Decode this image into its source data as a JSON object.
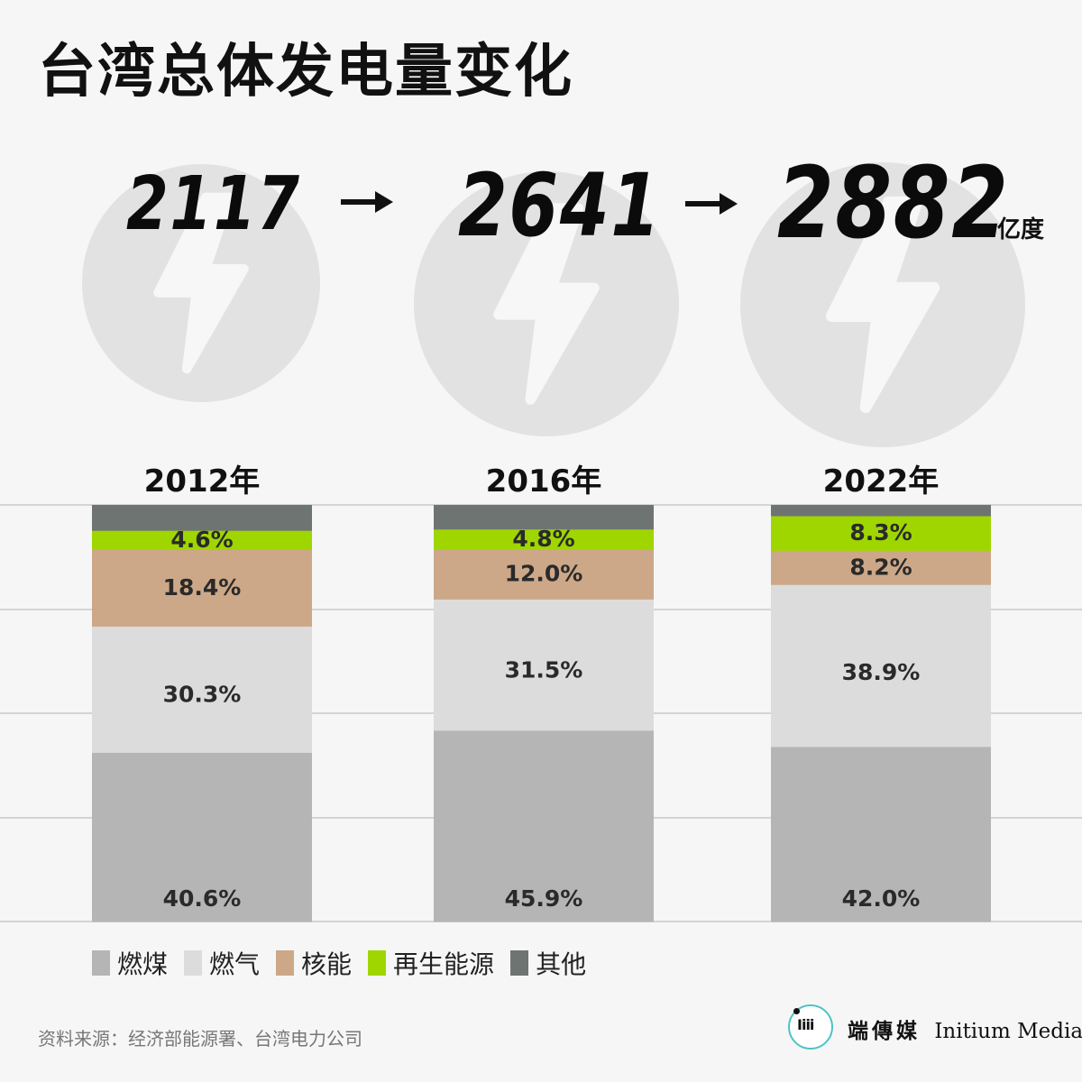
{
  "title": "台湾总体发电量变化",
  "totals": [
    {
      "value": "2117"
    },
    {
      "value": "2641"
    },
    {
      "value": "2882"
    }
  ],
  "unit": "亿度",
  "icons": {
    "bolt": "lightning-bolt-icon",
    "arrow": "right-arrow-icon"
  },
  "colors": {
    "coal": "#b5b5b5",
    "gas": "#dcdcdc",
    "nuclear": "#cda888",
    "renewable": "#9fd600",
    "other": "#6e7472",
    "circle": "#e2e2e2",
    "bolt": "#f7f7f7"
  },
  "chart_data": {
    "type": "bar",
    "stacked": true,
    "normalized": true,
    "categories": [
      "2012年",
      "2016年",
      "2022年"
    ],
    "ylim": [
      0,
      100
    ],
    "grid": true,
    "legend_position": "bottom-left",
    "series": [
      {
        "name": "燃煤",
        "values": [
          40.6,
          45.9,
          42.0
        ],
        "labels": [
          "40.6%",
          "45.9%",
          "42.0%"
        ],
        "color": "#b5b5b5"
      },
      {
        "name": "燃气",
        "values": [
          30.3,
          31.5,
          38.9
        ],
        "labels": [
          "30.3%",
          "31.5%",
          "38.9%"
        ],
        "color": "#dcdcdc"
      },
      {
        "name": "核能",
        "values": [
          18.4,
          12.0,
          8.2
        ],
        "labels": [
          "18.4%",
          "12.0%",
          "8.2%"
        ],
        "color": "#cda888"
      },
      {
        "name": "再生能源",
        "values": [
          4.6,
          4.8,
          8.3
        ],
        "labels": [
          "4.6%",
          "4.8%",
          "8.3%"
        ],
        "color": "#9fd600"
      },
      {
        "name": "其他",
        "values": [
          6.1,
          5.8,
          2.6
        ],
        "labels": [
          "",
          "",
          ""
        ],
        "color": "#6e7472"
      }
    ]
  },
  "legend": [
    {
      "label": "燃煤",
      "color": "#b5b5b5"
    },
    {
      "label": "燃气",
      "color": "#dcdcdc"
    },
    {
      "label": "核能",
      "color": "#cda888"
    },
    {
      "label": "再生能源",
      "color": "#9fd600"
    },
    {
      "label": "其他",
      "color": "#6e7472"
    }
  ],
  "source": "资料来源：经济部能源署、台湾电力公司",
  "brand": {
    "cn": "端傳媒",
    "en": "Initium Media",
    "mark": "Iiii"
  }
}
